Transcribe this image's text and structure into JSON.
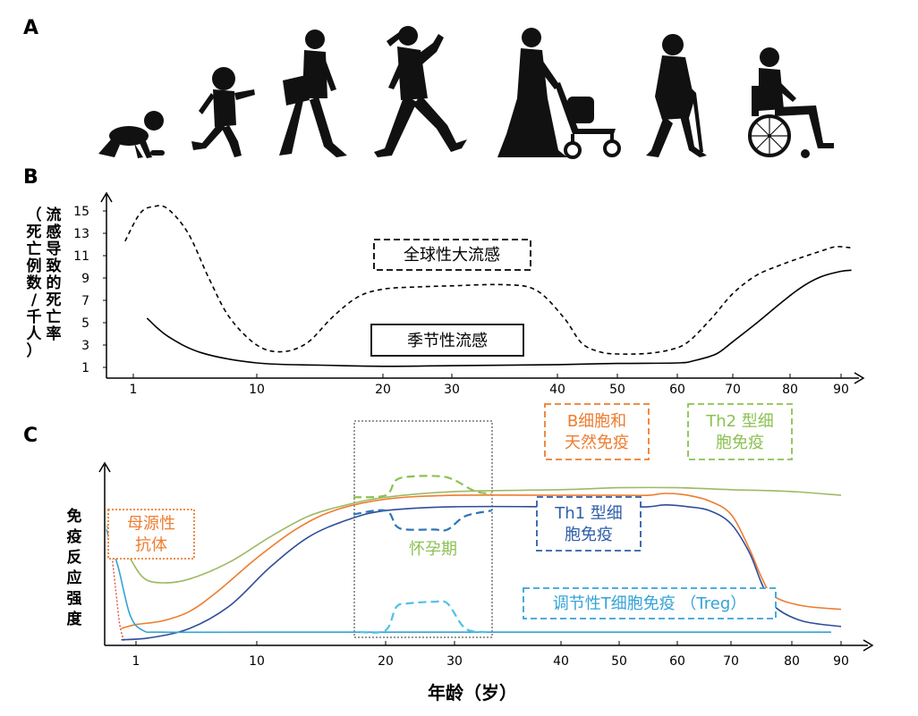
{
  "panels": {
    "a": "A",
    "b": "B",
    "c": "C"
  },
  "silhouettes": [
    "crawling-baby-icon",
    "running-child-icon",
    "walking-teen-icon",
    "jogging-woman-icon",
    "woman-with-stroller-icon",
    "elderly-woman-with-cane-icon",
    "person-in-wheelchair-icon"
  ],
  "chart_data": [
    {
      "type": "line",
      "title": "",
      "ylabel": "流感导致的死亡率（死亡例数/千人）",
      "xlabel": "",
      "xticks": [
        1,
        10,
        20,
        30,
        40,
        50,
        60,
        70,
        80,
        90
      ],
      "yticks": [
        1,
        3,
        5,
        7,
        9,
        11,
        13,
        15
      ],
      "ylim": [
        0,
        16.5
      ],
      "series": [
        {
          "name": "全球性大流感",
          "style": "dashed",
          "color": "#000000",
          "points": [
            [
              0.8,
              12.3
            ],
            [
              1.5,
              14.8
            ],
            [
              2.5,
              15.4
            ],
            [
              3.5,
              15.2
            ],
            [
              5,
              13
            ],
            [
              6.5,
              9
            ],
            [
              8,
              5.5
            ],
            [
              10,
              3
            ],
            [
              12,
              2.4
            ],
            [
              14,
              3.2
            ],
            [
              16,
              5.5
            ],
            [
              18,
              7.3
            ],
            [
              20,
              8
            ],
            [
              25,
              8.2
            ],
            [
              30,
              8.3
            ],
            [
              35,
              8.4
            ],
            [
              38,
              7.9
            ],
            [
              41,
              5.5
            ],
            [
              44,
              3.2
            ],
            [
              47,
              2.4
            ],
            [
              50,
              2.2
            ],
            [
              55,
              2.25
            ],
            [
              59,
              2.6
            ],
            [
              62,
              3.3
            ],
            [
              66,
              5.3
            ],
            [
              70,
              7.6
            ],
            [
              74,
              9.2
            ],
            [
              78,
              10.1
            ],
            [
              82,
              10.8
            ],
            [
              86,
              11.4
            ],
            [
              89,
              11.8
            ],
            [
              92,
              11.7
            ]
          ]
        },
        {
          "name": "季节性流感",
          "style": "solid",
          "color": "#000000",
          "points": [
            [
              2,
              5.4
            ],
            [
              3.5,
              3.8
            ],
            [
              6,
              2.3
            ],
            [
              10,
              1.4
            ],
            [
              15,
              1.2
            ],
            [
              20,
              1.1
            ],
            [
              30,
              1.15
            ],
            [
              40,
              1.25
            ],
            [
              50,
              1.35
            ],
            [
              60,
              1.4
            ],
            [
              63,
              1.6
            ],
            [
              67,
              2.2
            ],
            [
              70,
              3.3
            ],
            [
              74,
              4.9
            ],
            [
              78,
              6.6
            ],
            [
              82,
              8.1
            ],
            [
              86,
              9.1
            ],
            [
              90,
              9.6
            ],
            [
              92,
              9.7
            ]
          ]
        }
      ]
    },
    {
      "type": "line",
      "title": "",
      "ylabel": "免疫反应强度",
      "xlabel": "年龄（岁）",
      "xticks": [
        1,
        10,
        20,
        30,
        40,
        50,
        60,
        70,
        80,
        90
      ],
      "ylim": [
        0,
        1
      ],
      "shaded_region": {
        "label": "怀孕期",
        "x": [
          17.5,
          33.5
        ]
      },
      "series": [
        {
          "name": "母源性抗体",
          "color": "#e25b4b",
          "style": "dotted",
          "points": [
            [
              0,
              0.6
            ],
            [
              0.15,
              0.5
            ],
            [
              0.3,
              0.3
            ],
            [
              0.45,
              0.1
            ],
            [
              0.6,
              0.01
            ]
          ]
        },
        {
          "name": "Th2 型细胞免疫",
          "color": "#9dba63",
          "style": "solid",
          "points": [
            [
              0,
              0.62
            ],
            [
              0.6,
              0.5
            ],
            [
              1.5,
              0.35
            ],
            [
              3,
              0.32
            ],
            [
              5,
              0.34
            ],
            [
              8,
              0.43
            ],
            [
              11,
              0.56
            ],
            [
              14,
              0.67
            ],
            [
              17,
              0.73
            ],
            [
              20,
              0.77
            ],
            [
              30,
              0.8
            ],
            [
              40,
              0.81
            ],
            [
              50,
              0.82
            ],
            [
              60,
              0.82
            ],
            [
              70,
              0.81
            ],
            [
              80,
              0.8
            ],
            [
              90,
              0.78
            ]
          ]
        },
        {
          "name": "Th2 型细胞免疫（怀孕期）",
          "color": "#8cc152",
          "style": "dashed",
          "points": [
            [
              17.5,
              0.77
            ],
            [
              20,
              0.78
            ],
            [
              21.5,
              0.86
            ],
            [
              24,
              0.88
            ],
            [
              28,
              0.88
            ],
            [
              30,
              0.86
            ],
            [
              32,
              0.8
            ],
            [
              33.5,
              0.79
            ]
          ]
        },
        {
          "name": "B细胞和天然免疫",
          "color": "#ed7d31",
          "style": "solid",
          "points": [
            [
              0.5,
              0.08
            ],
            [
              1,
              0.1
            ],
            [
              3,
              0.12
            ],
            [
              5,
              0.17
            ],
            [
              7,
              0.27
            ],
            [
              10,
              0.45
            ],
            [
              13,
              0.6
            ],
            [
              16,
              0.7
            ],
            [
              20,
              0.76
            ],
            [
              30,
              0.78
            ],
            [
              40,
              0.78
            ],
            [
              50,
              0.78
            ],
            [
              55,
              0.78
            ],
            [
              58,
              0.79
            ],
            [
              62,
              0.78
            ],
            [
              66,
              0.75
            ],
            [
              70,
              0.68
            ],
            [
              73,
              0.5
            ],
            [
              75,
              0.35
            ],
            [
              77,
              0.25
            ],
            [
              82,
              0.2
            ],
            [
              90,
              0.18
            ]
          ]
        },
        {
          "name": "Th1 型细胞免疫",
          "color": "#2f4d9a",
          "style": "solid",
          "points": [
            [
              0.5,
              0.02
            ],
            [
              2,
              0.03
            ],
            [
              5,
              0.08
            ],
            [
              8,
              0.2
            ],
            [
              11,
              0.4
            ],
            [
              14,
              0.56
            ],
            [
              17,
              0.65
            ],
            [
              20,
              0.7
            ],
            [
              30,
              0.72
            ],
            [
              40,
              0.72
            ],
            [
              50,
              0.72
            ],
            [
              55,
              0.72
            ],
            [
              58,
              0.73
            ],
            [
              62,
              0.72
            ],
            [
              66,
              0.7
            ],
            [
              70,
              0.63
            ],
            [
              73,
              0.48
            ],
            [
              75,
              0.32
            ],
            [
              77,
              0.2
            ],
            [
              82,
              0.12
            ],
            [
              90,
              0.09
            ]
          ]
        },
        {
          "name": "Th1 型细胞免疫（怀孕期）",
          "color": "#2e75b6",
          "style": "dashed",
          "points": [
            [
              17.5,
              0.68
            ],
            [
              20,
              0.7
            ],
            [
              21.5,
              0.62
            ],
            [
              23,
              0.6
            ],
            [
              27,
              0.6
            ],
            [
              29,
              0.6
            ],
            [
              31,
              0.67
            ],
            [
              33.5,
              0.7
            ]
          ]
        },
        {
          "name": "调节性T细胞免疫（Treg）",
          "color": "#35a3d6",
          "style": "solid",
          "points": [
            [
              0,
              0.6
            ],
            [
              0.4,
              0.4
            ],
            [
              0.8,
              0.15
            ],
            [
              1.5,
              0.07
            ],
            [
              3,
              0.06
            ],
            [
              10,
              0.06
            ],
            [
              20,
              0.06
            ],
            [
              30,
              0.06
            ],
            [
              50,
              0.06
            ],
            [
              70,
              0.06
            ],
            [
              88,
              0.06
            ]
          ]
        },
        {
          "name": "调节性T细胞免疫（怀孕期）",
          "color": "#4dc1e8",
          "style": "dashed",
          "points": [
            [
              18,
              0.06
            ],
            [
              20,
              0.07
            ],
            [
              21.5,
              0.19
            ],
            [
              23,
              0.21
            ],
            [
              27,
              0.22
            ],
            [
              29,
              0.21
            ],
            [
              31,
              0.08
            ],
            [
              33,
              0.06
            ]
          ]
        }
      ],
      "labels": [
        {
          "text_lines": [
            "母源性",
            "抗体"
          ],
          "color": "#ed7d31"
        },
        {
          "text_lines": [
            "B细胞和",
            "天然免疫"
          ],
          "color": "#ed7d31"
        },
        {
          "text_lines": [
            "Th2 型细",
            "胞免疫"
          ],
          "color": "#8cc152"
        },
        {
          "text_lines": [
            "Th1 型细",
            "胞免疫"
          ],
          "color": "#2e5ea8"
        },
        {
          "text_lines": [
            "调节性T细胞免疫 （Treg）"
          ],
          "color": "#35a3d6"
        }
      ],
      "pregnancy_label": {
        "text": "怀孕期",
        "color": "#8cc152"
      }
    }
  ],
  "legend_b": {
    "pandemic": "全球性大流感",
    "seasonal": "季节性流感"
  },
  "ylabel_b": {
    "col1": "流感导致的死亡率",
    "col2": "（死亡例数/千人）"
  },
  "ylabel_c": "免疫反应强度",
  "xlabel_c": "年龄（岁）"
}
